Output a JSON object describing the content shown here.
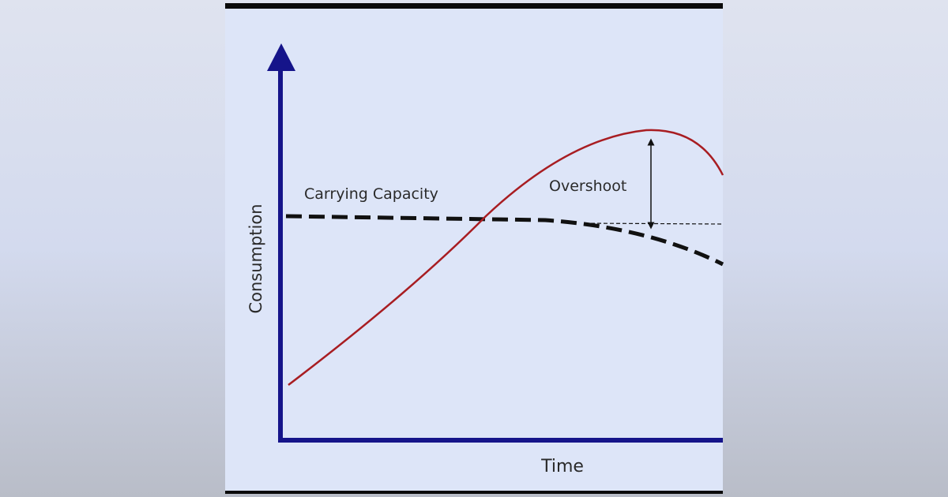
{
  "diagram": {
    "y_axis_label": "Consumption",
    "x_axis_label": "Time",
    "labels": {
      "capacity": "Carrying Capacity",
      "overshoot": "Overshoot"
    }
  }
}
